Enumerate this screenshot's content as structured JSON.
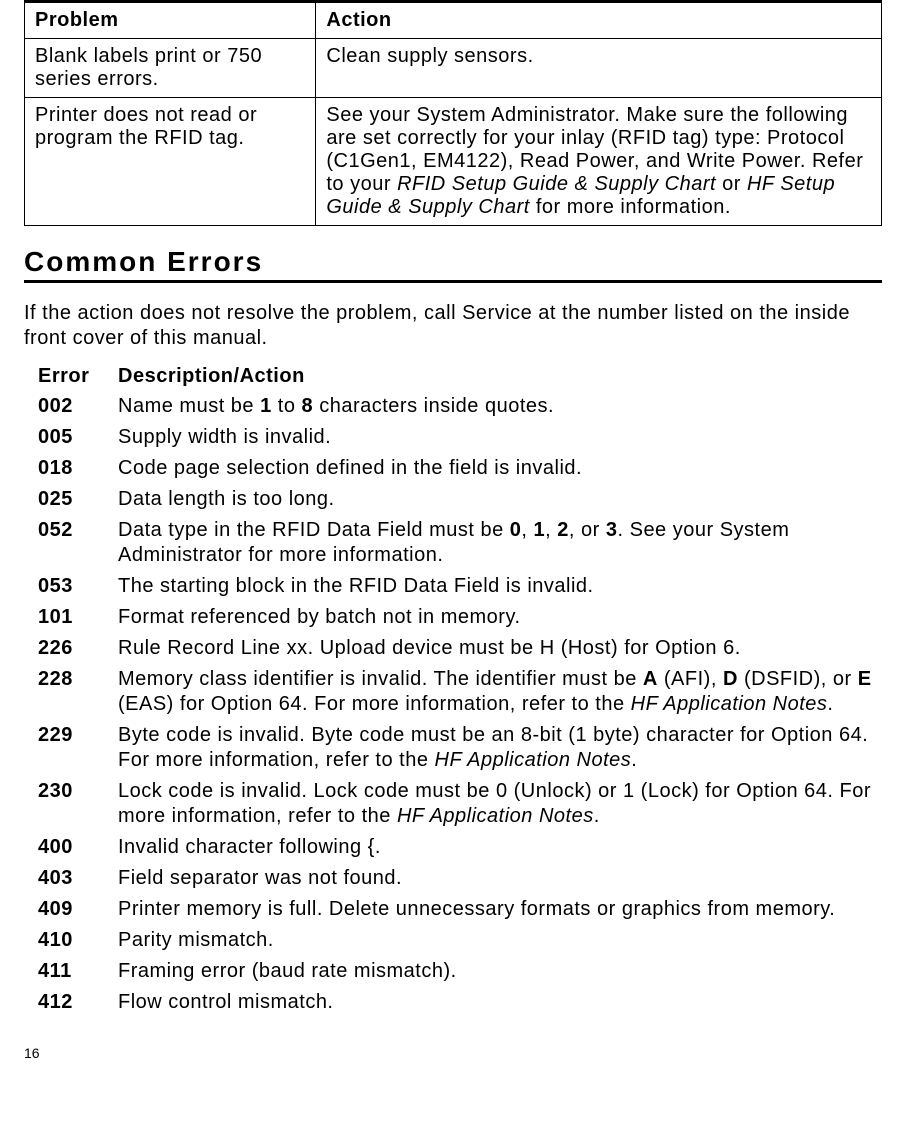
{
  "troubleshoot_table": {
    "headers": {
      "problem": "Problem",
      "action": "Action"
    },
    "rows": [
      {
        "problem": "Blank labels print or 750 series errors.",
        "action": "Clean supply sensors."
      },
      {
        "problem": "Printer does not read or program the RFID tag.",
        "action_pre": "See your System Administrator.  Make sure the following are set correctly for your inlay (RFID tag) type:  Protocol (C1Gen1, EM4122), Read Power, and Write Power.  Refer to your ",
        "action_italic1": "RFID Setup Guide & Supply Chart",
        "action_mid": " or ",
        "action_italic2": "HF Setup Guide & Supply Chart",
        "action_post": " for more information."
      }
    ]
  },
  "section_title": "Common Errors",
  "intro": "If the action does not resolve the problem, call Service at the number listed on the inside front cover of this manual.",
  "error_header": {
    "code": "Error",
    "desc": "Description/Action"
  },
  "errors": {
    "e002": {
      "code": "002",
      "pre": "Name must be ",
      "b1": "1",
      "mid1": " to ",
      "b2": "8",
      "post": " characters inside quotes."
    },
    "e005": {
      "code": "005",
      "text": "Supply width is invalid."
    },
    "e018": {
      "code": "018",
      "text": "Code page selection defined in the field is invalid."
    },
    "e025": {
      "code": "025",
      "text": "Data length is too long."
    },
    "e052": {
      "code": "052",
      "pre": "Data type in the RFID Data Field must be ",
      "b1": "0",
      "s1": ", ",
      "b2": "1",
      "s2": ", ",
      "b3": "2",
      "s3": ", or ",
      "b4": "3",
      "post": ".  See your System Administrator for more information."
    },
    "e053": {
      "code": "053",
      "text": "The starting block in the RFID Data Field is invalid."
    },
    "e101": {
      "code": "101",
      "text": "Format referenced by batch not in memory."
    },
    "e226": {
      "code": "226",
      "text": "Rule Record Line xx.  Upload device must be H (Host) for Option 6."
    },
    "e228": {
      "code": "228",
      "pre": "Memory class identifier is invalid.  The identifier must be ",
      "b1": "A",
      "s1": " (AFI), ",
      "b2": "D",
      "s2": " (DSFID), or ",
      "b3": "E",
      "s3": " (EAS) for Option 64.  For more information, refer to the ",
      "it": "HF Application Notes",
      "post": "."
    },
    "e229": {
      "code": "229",
      "pre": "Byte code is invalid.  Byte code must be an 8-bit (1 byte) character for Option 64.  For more information, refer to the ",
      "it": "HF Application Notes",
      "post": "."
    },
    "e230": {
      "code": "230",
      "pre": "Lock code is invalid.  Lock code must be 0 (Unlock) or 1 (Lock) for Option 64.  For more information, refer to the ",
      "it": "HF Application Notes",
      "post": "."
    },
    "e400": {
      "code": "400",
      "text": "Invalid character following {."
    },
    "e403": {
      "code": "403",
      "text": "Field separator was not found."
    },
    "e409": {
      "code": "409",
      "text": "Printer memory is full.  Delete unnecessary formats or graphics from memory."
    },
    "e410": {
      "code": "410",
      "text": "Parity mismatch."
    },
    "e411": {
      "code": "411",
      "text": "Framing error (baud rate mismatch)."
    },
    "e412": {
      "code": "412",
      "text": "Flow control mismatch."
    }
  },
  "page_number": "16"
}
